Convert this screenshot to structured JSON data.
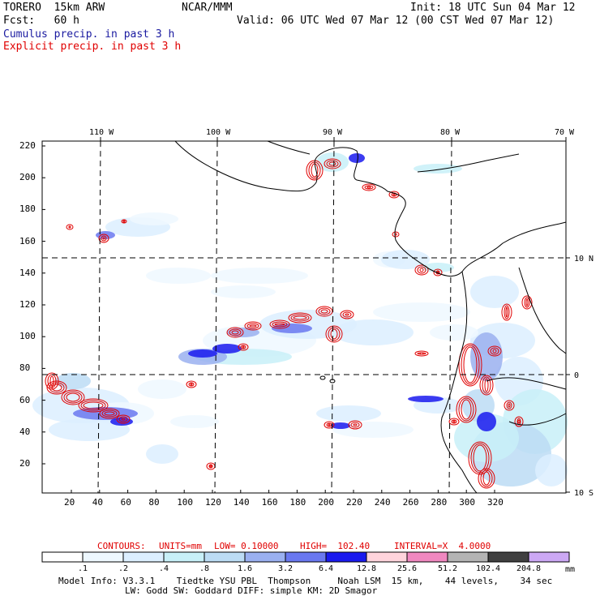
{
  "header": {
    "model": "TORERO  15km ARW",
    "org": "NCAR/MMM",
    "init": "Init: 18 UTC Sun 04 Mar 12",
    "fcst": "Fcst:   60 h",
    "valid": "Valid: 06 UTC Wed 07 Mar 12 (00 CST Wed 07 Mar 12)",
    "legend_cumulus": "Cumulus precip. in past 3 h",
    "legend_explicit": "Explicit precip. in past 3 h"
  },
  "colors": {
    "cumulus": "#1a1aa0",
    "explicit": "#e00000",
    "coast": "#000000"
  },
  "axes": {
    "x_ticks": [
      "20",
      "40",
      "60",
      "80",
      "100",
      "120",
      "140",
      "160",
      "180",
      "200",
      "220",
      "240",
      "260",
      "280",
      "300",
      "320"
    ],
    "y_ticks": [
      "20",
      "40",
      "60",
      "80",
      "100",
      "120",
      "140",
      "160",
      "180",
      "200",
      "220"
    ],
    "lon_labels": [
      "110 W",
      "100 W",
      "90 W",
      "80 W",
      "70 W"
    ],
    "lat_labels": [
      "10 N",
      "0",
      "10 S"
    ]
  },
  "contours": {
    "label": "CONTOURS:",
    "units": "UNITS=mm",
    "low": "LOW= 0.10000",
    "high": "HIGH=  102.40",
    "interval": "INTERVAL=X  4.0000"
  },
  "colorbar": {
    "labels": [
      ".1",
      ".2",
      ".4",
      ".8",
      "1.6",
      "3.2",
      "6.4",
      "12.8",
      "25.6",
      "51.2",
      "102.4",
      "204.8"
    ],
    "unit": "mm",
    "colors": [
      "#ffffff",
      "#eef8ff",
      "#dcefff",
      "#c8f0f8",
      "#bcdcf4",
      "#9ab0f0",
      "#6a78f0",
      "#1a1aee",
      "#ffd4dc",
      "#f088c0",
      "#b4b4b4",
      "#404040",
      "#cca8f4"
    ]
  },
  "footer": {
    "line1": "Model Info: V3.3.1    Tiedtke YSU PBL  Thompson     Noah LSM  15 km,    44 levels,    34 sec",
    "line2": "LW: Godd SW: Goddard DIFF: simple KM: 2D Smagor"
  }
}
